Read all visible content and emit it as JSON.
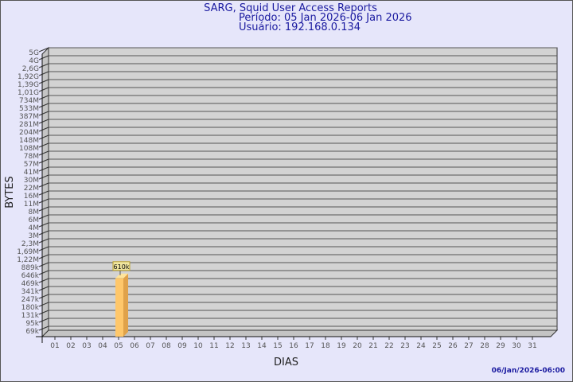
{
  "header": {
    "title": "SARG, Squid User Access Reports",
    "period": "Período: 05 Jan 2026-06 Jan 2026",
    "user": "Usuário: 192.168.0.134"
  },
  "footer": {
    "timestamp": "06/Jan/2026-06:00"
  },
  "colors": {
    "background": "#e6e6fa",
    "plot": "#d3d3d3",
    "bar": "#ffc76a",
    "text": "#1a1aa0"
  },
  "chart_data": {
    "type": "bar",
    "title": "SARG, Squid User Access Reports",
    "xlabel": "DIAS",
    "ylabel": "BYTES",
    "categories": [
      "01",
      "02",
      "03",
      "04",
      "05",
      "06",
      "07",
      "08",
      "09",
      "10",
      "11",
      "12",
      "13",
      "14",
      "15",
      "16",
      "17",
      "18",
      "19",
      "20",
      "21",
      "22",
      "23",
      "24",
      "25",
      "26",
      "27",
      "28",
      "29",
      "30",
      "31"
    ],
    "y_ticks": [
      "5G",
      "4G",
      "2,6G",
      "1,92G",
      "1,39G",
      "1,01G",
      "734M",
      "533M",
      "387M",
      "281M",
      "204M",
      "148M",
      "108M",
      "78M",
      "57M",
      "41M",
      "30M",
      "22M",
      "16M",
      "11M",
      "8M",
      "6M",
      "4M",
      "3M",
      "2,3M",
      "1,69M",
      "1,22M",
      "889k",
      "646k",
      "469k",
      "341k",
      "247k",
      "180k",
      "131k",
      "95k",
      "69k"
    ],
    "y_scale": "log",
    "grid": true,
    "series": [
      {
        "values": [
          0,
          0,
          0,
          0,
          610000,
          0,
          0,
          0,
          0,
          0,
          0,
          0,
          0,
          0,
          0,
          0,
          0,
          0,
          0,
          0,
          0,
          0,
          0,
          0,
          0,
          0,
          0,
          0,
          0,
          0,
          0
        ]
      }
    ],
    "data_labels": [
      {
        "category": "05",
        "label": "610k"
      }
    ]
  }
}
